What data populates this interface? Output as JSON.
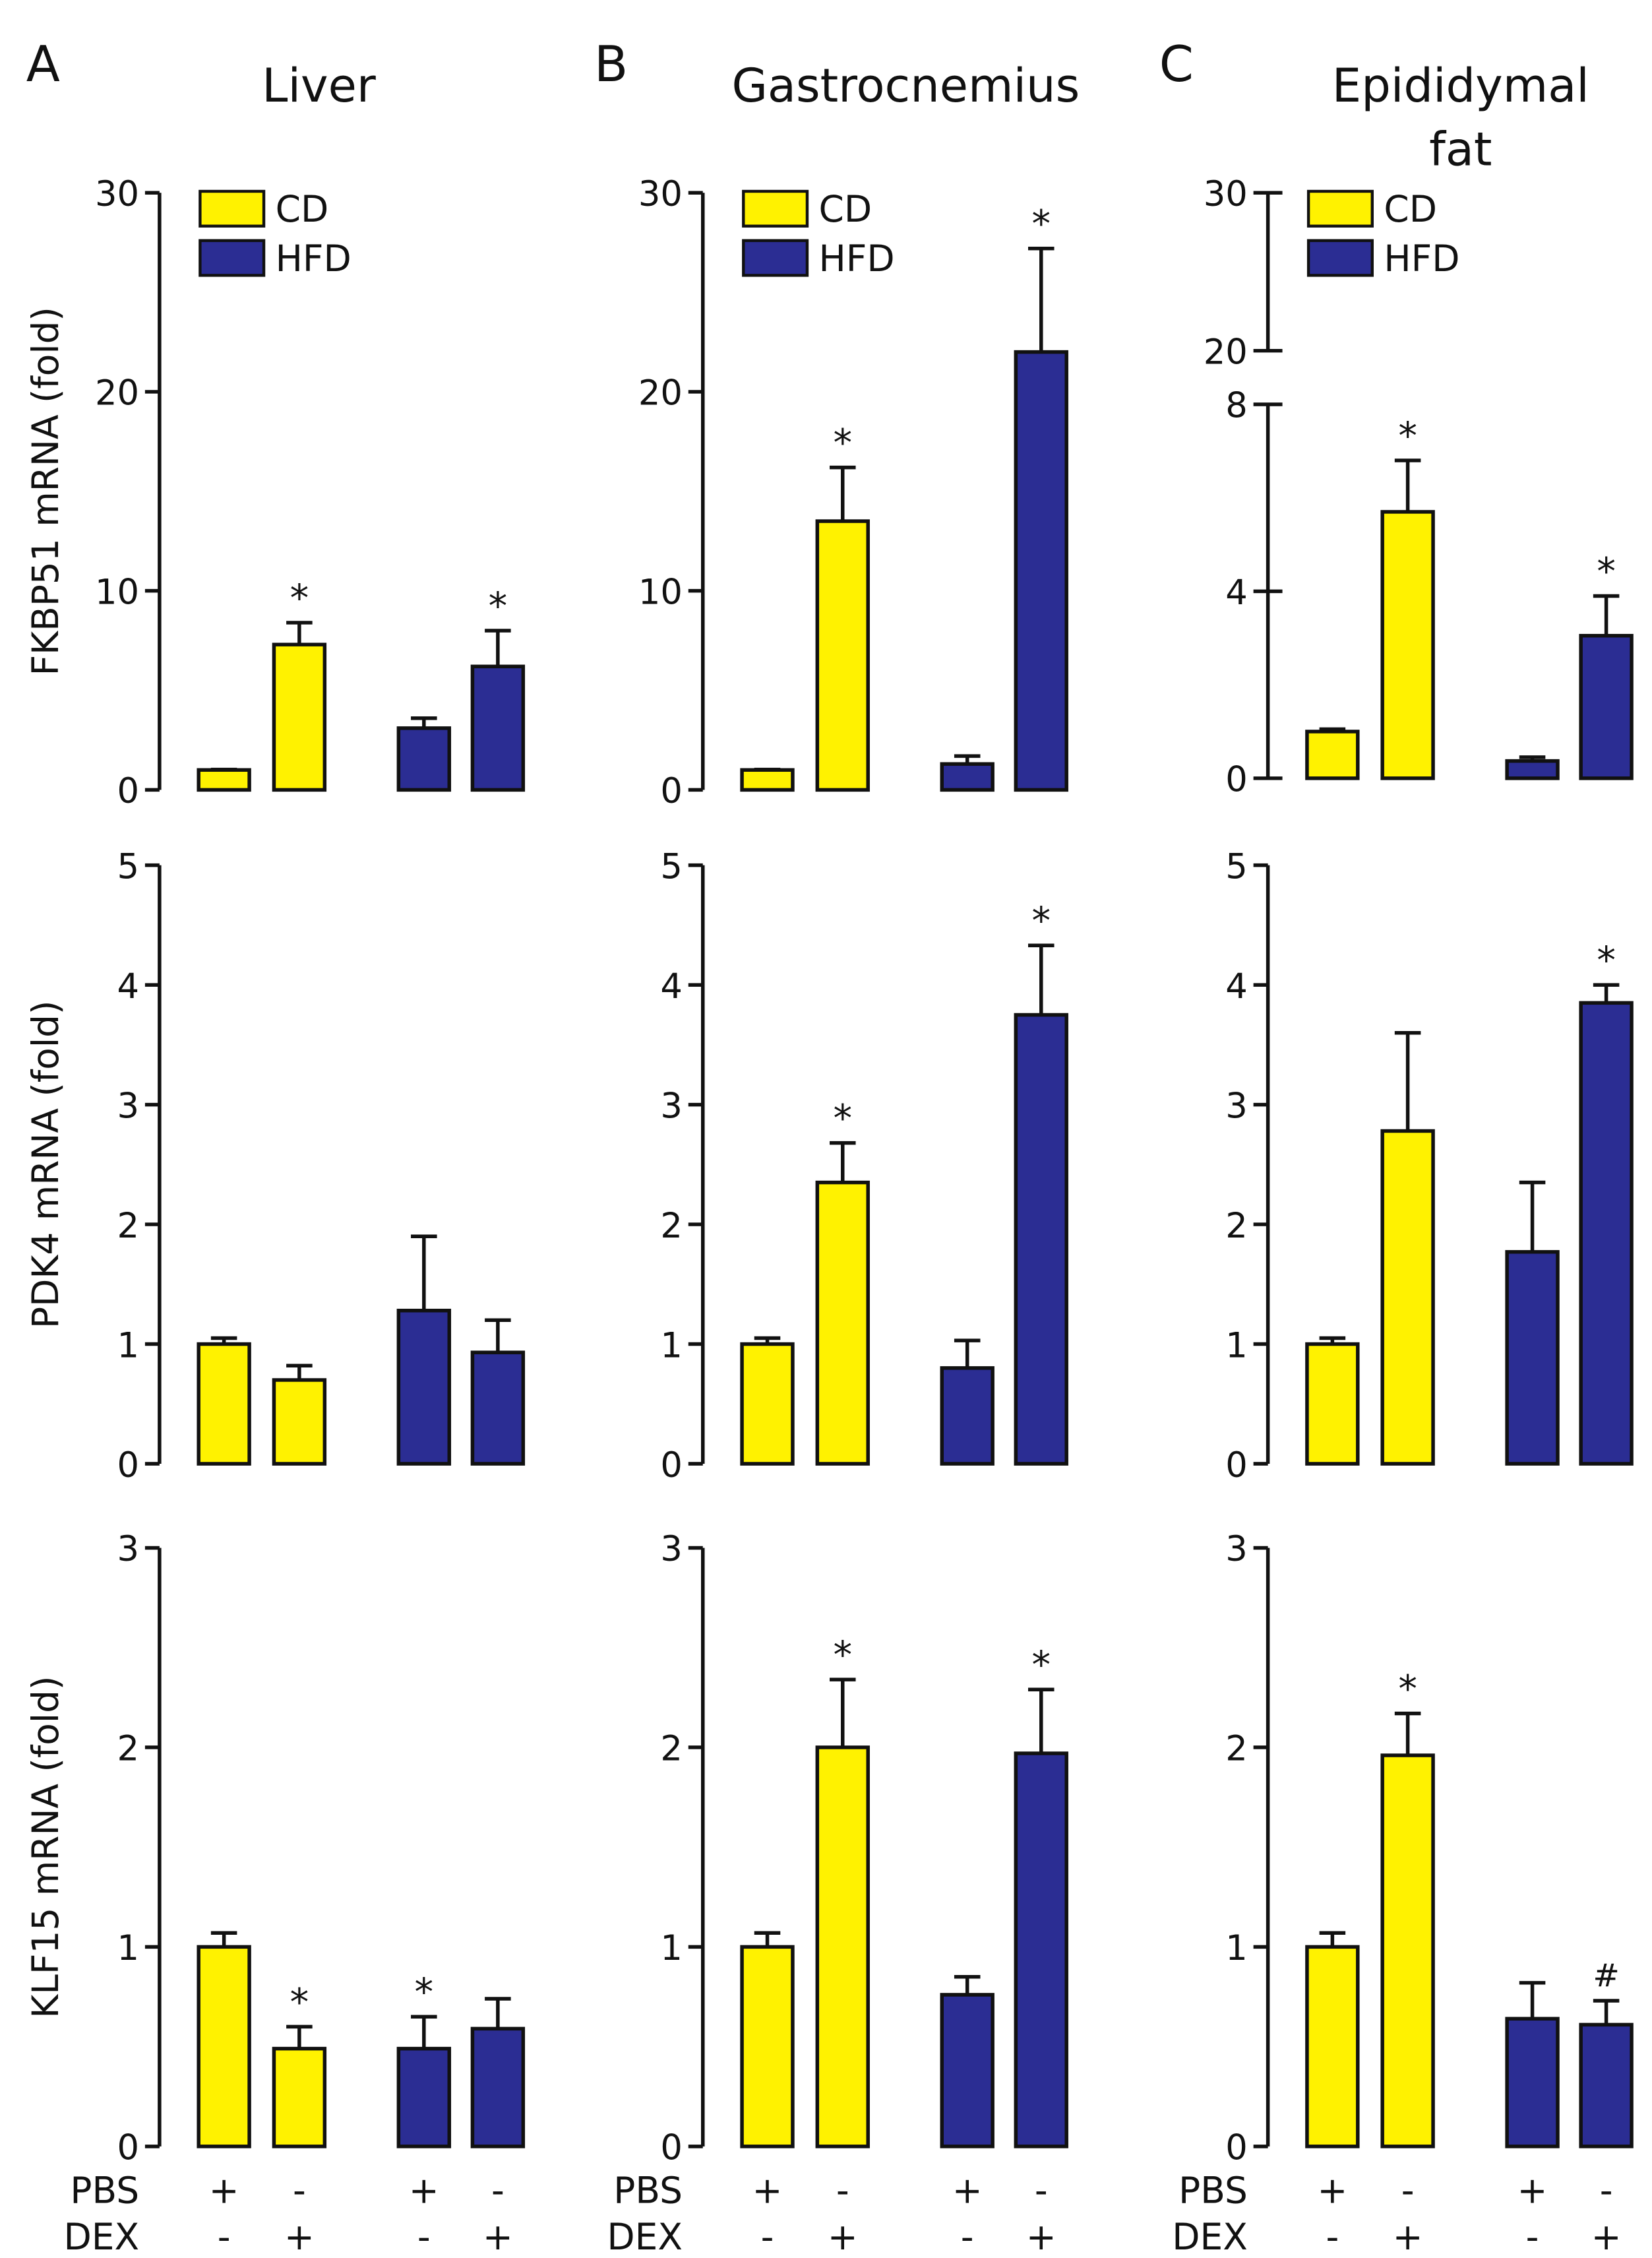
{
  "colors": {
    "CD": "#FFF200",
    "HFD": "#2B2D93",
    "axis": "#111111"
  },
  "legend": [
    "CD",
    "HFD"
  ],
  "treatment_rows": {
    "PBS": [
      "+",
      "-",
      "+",
      "-"
    ],
    "DEX": [
      "-",
      "+",
      "-",
      "+"
    ],
    "labels": [
      "PBS",
      "DEX"
    ]
  },
  "columns": [
    {
      "letter": "A",
      "title": [
        "Liver"
      ]
    },
    {
      "letter": "B",
      "title": [
        "Gastrocnemius"
      ]
    },
    {
      "letter": "C",
      "title": [
        "Epididymal",
        "fat"
      ]
    }
  ],
  "chart_data": [
    {
      "type": "bar",
      "gene": "FKBP51",
      "ylabel": "FKBP51 mRNA  (fold)",
      "tissue": "Liver",
      "ylim": [
        0,
        30
      ],
      "yticks": [
        0,
        10,
        20,
        30
      ],
      "categories": [
        "CD PBS",
        "CD DEX",
        "HFD PBS",
        "HFD DEX"
      ],
      "values": [
        1.0,
        7.3,
        3.1,
        6.2
      ],
      "errors": [
        1.02,
        8.4,
        3.6,
        8.0
      ],
      "marks": [
        "",
        "*",
        "",
        "*"
      ]
    },
    {
      "type": "bar",
      "gene": "FKBP51",
      "ylabel": "",
      "tissue": "Gastrocnemius",
      "ylim": [
        0,
        30
      ],
      "yticks": [
        0,
        10,
        20,
        30
      ],
      "categories": [
        "CD PBS",
        "CD DEX",
        "HFD PBS",
        "HFD DEX"
      ],
      "values": [
        1.0,
        13.5,
        1.3,
        22.0
      ],
      "errors": [
        1.02,
        16.2,
        1.7,
        27.2
      ],
      "marks": [
        "",
        "*",
        "",
        "*"
      ]
    },
    {
      "type": "bar",
      "gene": "FKBP51",
      "ylabel": "",
      "tissue": "Epididymal fat",
      "ylim": [
        0,
        30
      ],
      "axis_break": [
        8,
        20
      ],
      "yticks": [
        0,
        4,
        8,
        20,
        30
      ],
      "categories": [
        "CD PBS",
        "CD DEX",
        "HFD PBS",
        "HFD DEX"
      ],
      "values": [
        1.0,
        5.7,
        0.37,
        3.05
      ],
      "errors": [
        1.05,
        6.8,
        0.45,
        3.9
      ],
      "marks": [
        "",
        "*",
        "",
        "*"
      ]
    },
    {
      "type": "bar",
      "gene": "PDK4",
      "ylabel": "PDK4 mRNA  (fold)",
      "tissue": "Liver",
      "ylim": [
        0,
        5
      ],
      "yticks": [
        0,
        1,
        2,
        3,
        4,
        5
      ],
      "categories": [
        "CD PBS",
        "CD DEX",
        "HFD PBS",
        "HFD DEX"
      ],
      "values": [
        1.0,
        0.7,
        1.28,
        0.93
      ],
      "errors": [
        1.05,
        0.82,
        1.9,
        1.2
      ],
      "marks": [
        "",
        "",
        "",
        ""
      ]
    },
    {
      "type": "bar",
      "gene": "PDK4",
      "ylabel": "",
      "tissue": "Gastrocnemius",
      "ylim": [
        0,
        5
      ],
      "yticks": [
        0,
        1,
        2,
        3,
        4,
        5
      ],
      "categories": [
        "CD PBS",
        "CD DEX",
        "HFD PBS",
        "HFD DEX"
      ],
      "values": [
        1.0,
        2.35,
        0.8,
        3.75
      ],
      "errors": [
        1.05,
        2.68,
        1.03,
        4.33
      ],
      "marks": [
        "",
        "*",
        "",
        "*"
      ]
    },
    {
      "type": "bar",
      "gene": "PDK4",
      "ylabel": "",
      "tissue": "Epididymal fat",
      "ylim": [
        0,
        5
      ],
      "yticks": [
        0,
        1,
        2,
        3,
        4,
        5
      ],
      "categories": [
        "CD PBS",
        "CD DEX",
        "HFD PBS",
        "HFD DEX"
      ],
      "values": [
        1.0,
        2.78,
        1.77,
        3.85
      ],
      "errors": [
        1.05,
        3.6,
        2.35,
        4.0
      ],
      "marks": [
        "",
        "",
        "",
        "*"
      ]
    },
    {
      "type": "bar",
      "gene": "KLF15",
      "ylabel": "KLF15 mRNA  (fold)",
      "tissue": "Liver",
      "ylim": [
        0,
        3
      ],
      "yticks": [
        0,
        1,
        2,
        3
      ],
      "categories": [
        "CD PBS",
        "CD DEX",
        "HFD PBS",
        "HFD DEX"
      ],
      "values": [
        1.0,
        0.49,
        0.49,
        0.59
      ],
      "errors": [
        1.07,
        0.6,
        0.65,
        0.74
      ],
      "marks": [
        "",
        "*",
        "*",
        ""
      ]
    },
    {
      "type": "bar",
      "gene": "KLF15",
      "ylabel": "",
      "tissue": "Gastrocnemius",
      "ylim": [
        0,
        3
      ],
      "yticks": [
        0,
        1,
        2,
        3
      ],
      "categories": [
        "CD PBS",
        "CD DEX",
        "HFD PBS",
        "HFD DEX"
      ],
      "values": [
        1.0,
        2.0,
        0.76,
        1.97
      ],
      "errors": [
        1.07,
        2.34,
        0.85,
        2.29
      ],
      "marks": [
        "",
        "*",
        "",
        "*"
      ]
    },
    {
      "type": "bar",
      "gene": "KLF15",
      "ylabel": "",
      "tissue": "Epididymal fat",
      "ylim": [
        0,
        3
      ],
      "yticks": [
        0,
        1,
        2,
        3
      ],
      "categories": [
        "CD PBS",
        "CD DEX",
        "HFD PBS",
        "HFD DEX"
      ],
      "values": [
        1.0,
        1.96,
        0.64,
        0.61
      ],
      "errors": [
        1.07,
        2.17,
        0.82,
        0.73
      ],
      "marks": [
        "",
        "*",
        "",
        "#"
      ]
    }
  ]
}
